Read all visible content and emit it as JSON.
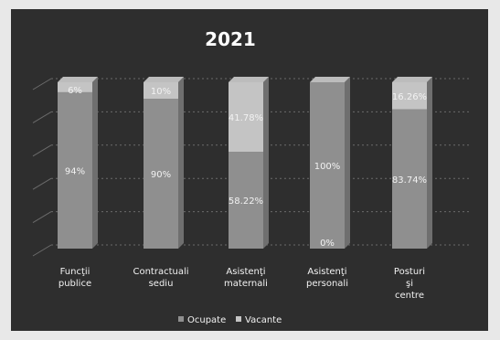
{
  "chart_data": {
    "type": "bar",
    "stacked": true,
    "title": "2021",
    "categories": [
      "Funcţii publice",
      "Contractuali sediu",
      "Asistenţi maternali",
      "Asistenţi personali",
      "Posturi şi centre"
    ],
    "series": [
      {
        "name": "Ocupate",
        "values": [
          94,
          90,
          58.22,
          100,
          83.74
        ]
      },
      {
        "name": "Vacante",
        "values": [
          6,
          10,
          41.78,
          0,
          16.26
        ]
      }
    ],
    "data_labels": {
      "Ocupate": [
        "94%",
        "90%",
        "58.22%",
        "100%",
        "83.74%"
      ],
      "Vacante": [
        "6%",
        "10%",
        "41.78%",
        "0%",
        "16.26%"
      ]
    },
    "ylim": [
      0,
      100
    ],
    "grid": true,
    "legend_placement": "bottom"
  },
  "colors": {
    "background": "#2e2e2e",
    "bar_occupied": "#8f8f8f",
    "bar_vacant": "#c4c4c4",
    "bar_highlight": "#bcbcbc",
    "label": "#f2f2f2",
    "grid": "#6b6b6b"
  }
}
